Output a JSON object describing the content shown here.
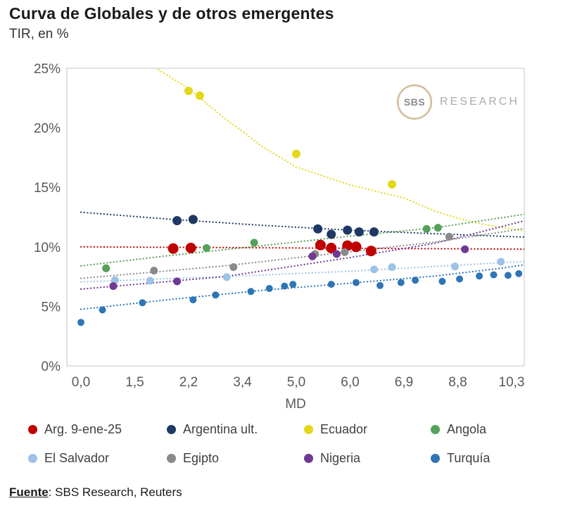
{
  "title": "Curva de Globales y de otros emergentes",
  "subtitle": "TIR, en %",
  "watermark": {
    "circle_text": "SBS",
    "label": "RESEARCH"
  },
  "footer": {
    "source_label": "Fuente",
    "source_rest": ": SBS Research, Reuters"
  },
  "chart_data": {
    "type": "scatter",
    "title": "Curva de Globales y de otros emergentes",
    "subtitle": "TIR, en %",
    "xlabel": "MD",
    "ylabel": "TIR, en %",
    "ylim": [
      0,
      25
    ],
    "grid": false,
    "legend_position": "bottom",
    "x_ticks": [
      "0,0",
      "1,5",
      "2,2",
      "3,4",
      "5,0",
      "6,0",
      "6,9",
      "8,8",
      "10,3"
    ],
    "x_tick_values": [
      0,
      1.5,
      2.2,
      3.4,
      5.0,
      6.0,
      6.9,
      8.8,
      10.3
    ],
    "y_ticks": [
      "25%",
      "20%",
      "15%",
      "10%",
      "5%",
      "0%"
    ],
    "y_tick_values": [
      25,
      20,
      15,
      10,
      5,
      0
    ],
    "series": [
      {
        "name": "Arg. 9-ene-25",
        "color": "#C00000",
        "r": 7.5,
        "points": [
          [
            2.0,
            9.85
          ],
          [
            2.25,
            9.9
          ],
          [
            5.45,
            10.15
          ],
          [
            5.65,
            9.9
          ],
          [
            5.95,
            10.1
          ],
          [
            6.1,
            10.0
          ],
          [
            6.35,
            9.65
          ]
        ],
        "trend": [
          [
            0,
            10.0
          ],
          [
            10.8,
            9.8
          ]
        ]
      },
      {
        "name": "Argentina ult.",
        "color": "#1F3864",
        "r": 6.5,
        "points": [
          [
            2.05,
            12.2
          ],
          [
            2.3,
            12.3
          ],
          [
            5.4,
            11.5
          ],
          [
            5.65,
            11.05
          ],
          [
            5.95,
            11.4
          ],
          [
            6.15,
            11.25
          ],
          [
            6.4,
            11.25
          ]
        ],
        "trend": [
          [
            0,
            12.9
          ],
          [
            2,
            12.3
          ],
          [
            4,
            11.8
          ],
          [
            6,
            11.4
          ],
          [
            8,
            11.1
          ],
          [
            10.8,
            10.8
          ]
        ]
      },
      {
        "name": "Ecuador",
        "color": "#E3D81C",
        "r": 6,
        "points": [
          [
            2.2,
            23.1
          ],
          [
            2.45,
            22.7
          ],
          [
            5.0,
            17.8
          ],
          [
            6.7,
            15.25
          ]
        ],
        "trend": [
          [
            1.7,
            25.3
          ],
          [
            2.2,
            23.3
          ],
          [
            3,
            20.8
          ],
          [
            3.4,
            19.7
          ],
          [
            4,
            18.4
          ],
          [
            5,
            16.7
          ],
          [
            6,
            15.2
          ],
          [
            6.9,
            14.1
          ],
          [
            8,
            13.0
          ],
          [
            8.8,
            12.4
          ],
          [
            9.5,
            11.9
          ],
          [
            10.3,
            11.5
          ],
          [
            10.8,
            11.3
          ]
        ]
      },
      {
        "name": "Angola",
        "color": "#55A05A",
        "r": 5.5,
        "points": [
          [
            0.7,
            8.2
          ],
          [
            2.6,
            9.9
          ],
          [
            3.75,
            10.35
          ],
          [
            7.7,
            11.5
          ],
          [
            8.1,
            11.6
          ]
        ],
        "trend": [
          [
            0,
            8.4
          ],
          [
            2,
            9.3
          ],
          [
            4,
            10.1
          ],
          [
            6,
            10.9
          ],
          [
            8,
            11.6
          ],
          [
            10.8,
            12.8
          ]
        ]
      },
      {
        "name": "El Salvador",
        "color": "#9DC3E6",
        "r": 5.5,
        "points": [
          [
            0.95,
            7.2
          ],
          [
            1.7,
            7.15
          ],
          [
            3.05,
            7.45
          ],
          [
            6.4,
            8.1
          ],
          [
            6.7,
            8.3
          ],
          [
            8.7,
            8.35
          ],
          [
            10.0,
            8.75
          ]
        ],
        "trend": [
          [
            0,
            7.05
          ],
          [
            3,
            7.5
          ],
          [
            6,
            7.95
          ],
          [
            10.8,
            8.8
          ]
        ]
      },
      {
        "name": "Egipto",
        "color": "#8A8A8A",
        "r": 5.5,
        "points": [
          [
            1.75,
            8.0
          ],
          [
            3.2,
            8.3
          ],
          [
            5.35,
            9.4
          ],
          [
            5.9,
            9.55
          ],
          [
            8.5,
            10.85
          ]
        ],
        "trend": [
          [
            0,
            7.35
          ],
          [
            3,
            8.4
          ],
          [
            6,
            9.6
          ],
          [
            8,
            10.4
          ],
          [
            10.8,
            11.6
          ]
        ]
      },
      {
        "name": "Nigeria",
        "color": "#6F3996",
        "r": 5.5,
        "points": [
          [
            0.9,
            6.7
          ],
          [
            2.05,
            7.1
          ],
          [
            5.3,
            9.2
          ],
          [
            5.75,
            9.4
          ],
          [
            9.0,
            9.8
          ]
        ],
        "trend": [
          [
            0,
            6.45
          ],
          [
            3,
            7.5
          ],
          [
            6,
            9.1
          ],
          [
            8,
            10.3
          ],
          [
            9.5,
            11.3
          ],
          [
            10.8,
            12.3
          ]
        ]
      },
      {
        "name": "Turquía",
        "color": "#2E75B6",
        "r": 5,
        "points": [
          [
            0.0,
            3.65
          ],
          [
            0.6,
            4.7
          ],
          [
            1.6,
            5.3
          ],
          [
            2.3,
            5.55
          ],
          [
            2.8,
            5.95
          ],
          [
            3.65,
            6.25
          ],
          [
            4.2,
            6.5
          ],
          [
            4.65,
            6.7
          ],
          [
            4.9,
            6.85
          ],
          [
            5.65,
            6.85
          ],
          [
            6.1,
            7.0
          ],
          [
            6.5,
            6.75
          ],
          [
            6.85,
            7.0
          ],
          [
            7.3,
            7.2
          ],
          [
            8.25,
            7.1
          ],
          [
            8.85,
            7.3
          ],
          [
            9.4,
            7.55
          ],
          [
            9.8,
            7.65
          ],
          [
            10.2,
            7.6
          ],
          [
            10.5,
            7.75
          ]
        ],
        "trend": [
          [
            0,
            4.75
          ],
          [
            2,
            5.6
          ],
          [
            4,
            6.35
          ],
          [
            6,
            6.95
          ],
          [
            8,
            7.55
          ],
          [
            10,
            8.2
          ],
          [
            10.8,
            8.55
          ]
        ]
      }
    ]
  }
}
